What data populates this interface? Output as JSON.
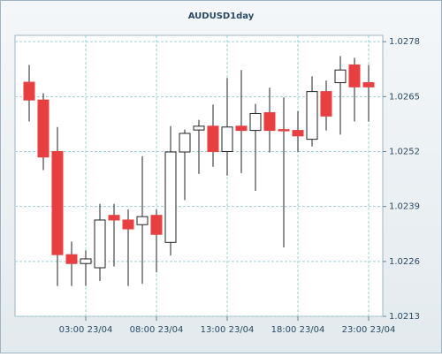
{
  "chart_data": {
    "type": "candlestick",
    "title": "AUDUSD1day",
    "categories": [
      null,
      null,
      null,
      null,
      "03:00 23/04",
      null,
      null,
      null,
      null,
      "08:00 23/04",
      null,
      null,
      null,
      null,
      "13:00 23/04",
      null,
      null,
      null,
      null,
      "18:00 23/04",
      null,
      null,
      null,
      null,
      "23:00 23/04"
    ],
    "series": [
      {
        "open": [
          1.02684,
          1.02642,
          1.0252,
          1.02276,
          1.02255,
          1.02245,
          1.02369,
          1.02358,
          1.02347,
          1.02369,
          1.02305,
          1.02519,
          1.02571,
          1.0258,
          1.0252,
          1.0258,
          1.0257,
          1.02612,
          1.02572,
          1.0257,
          1.02549,
          1.02662,
          1.02683,
          1.02725,
          1.02683
        ],
        "high": [
          1.02725,
          1.02658,
          1.02578,
          1.02307,
          1.02286,
          1.02396,
          1.02396,
          1.02383,
          1.02509,
          1.02383,
          1.0258,
          1.02572,
          1.02595,
          1.02631,
          1.02694,
          1.02713,
          1.02633,
          1.02671,
          1.02648,
          1.02616,
          1.02698,
          1.02688,
          1.02746,
          1.02742,
          1.02725
        ],
        "low": [
          1.02591,
          1.02476,
          1.02202,
          1.02202,
          1.02202,
          1.02214,
          1.02248,
          1.02202,
          1.02207,
          1.02234,
          1.02274,
          1.02405,
          1.02467,
          1.02484,
          1.02463,
          1.02469,
          1.02427,
          1.02518,
          1.02293,
          1.02519,
          1.02532,
          1.0257,
          1.0256,
          1.02591,
          1.02591
        ],
        "close": [
          1.02642,
          1.02507,
          1.02276,
          1.02255,
          1.02266,
          1.02358,
          1.02358,
          1.02337,
          1.02366,
          1.02324,
          1.02519,
          1.02563,
          1.0258,
          1.0252,
          1.02578,
          1.0257,
          1.0261,
          1.0257,
          1.02569,
          1.02557,
          1.02662,
          1.02604,
          1.02713,
          1.02673,
          1.02673
        ],
        "up_color": "#ffffff",
        "down_color": "#e84040"
      }
    ],
    "ylim": [
      1.0213,
      1.02795
    ],
    "yticks": [
      1.0213,
      1.0226,
      1.0239,
      1.0252,
      1.0265,
      1.0278
    ],
    "grid": true
  }
}
